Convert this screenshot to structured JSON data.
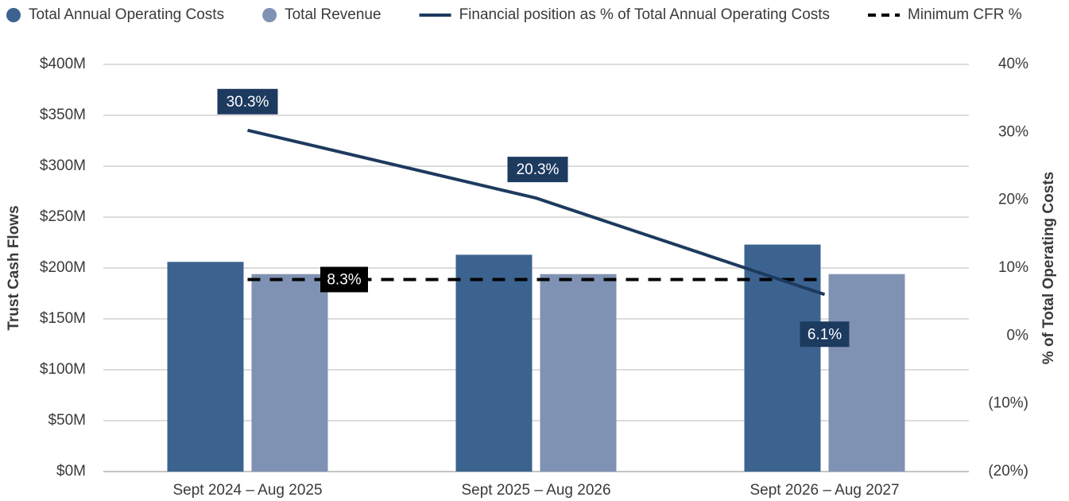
{
  "chart_data": {
    "type": "bar",
    "categories": [
      "Sept 2024 – Aug 2025",
      "Sept 2025 – Aug 2026",
      "Sept 2026 – Aug 2027"
    ],
    "series": [
      {
        "name": "Total Annual Operating Costs",
        "color": "#3c6390",
        "values": [
          206,
          213,
          223
        ]
      },
      {
        "name": "Total Revenue",
        "color": "#8092b3",
        "values": [
          194,
          194,
          194
        ]
      },
      {
        "name": "Financial position as % of Total Annual Operating Costs",
        "type": "line",
        "axis": "y2",
        "color": "#1d3a5f",
        "values": [
          30.3,
          20.3,
          6.1
        ],
        "value_labels": [
          "30.3%",
          "20.3%",
          "6.1%"
        ]
      }
    ],
    "reference_line": {
      "name": "Minimum CFR %",
      "axis": "y2",
      "color": "#000000",
      "value": 8.3,
      "value_label": "8.3%"
    },
    "ylabel": "Trust Cash Flows",
    "y2label": "% of Total Operating Costs",
    "ylim": [
      0,
      400
    ],
    "yticks": [
      {
        "value": 0,
        "label": "$0M"
      },
      {
        "value": 50,
        "label": "$50M"
      },
      {
        "value": 100,
        "label": "$100M"
      },
      {
        "value": 150,
        "label": "$150M"
      },
      {
        "value": 200,
        "label": "$200M"
      },
      {
        "value": 250,
        "label": "$250M"
      },
      {
        "value": 300,
        "label": "$300M"
      },
      {
        "value": 350,
        "label": "$350M"
      },
      {
        "value": 400,
        "label": "$400M"
      }
    ],
    "y2lim": [
      -20,
      40
    ],
    "y2ticks": [
      {
        "value": -20,
        "label": "(20%)"
      },
      {
        "value": -10,
        "label": "(10%)"
      },
      {
        "value": 0,
        "label": "0%"
      },
      {
        "value": 10,
        "label": "10%"
      },
      {
        "value": 20,
        "label": "20%"
      },
      {
        "value": 30,
        "label": "30%"
      },
      {
        "value": 40,
        "label": "40%"
      }
    ],
    "grid": true
  }
}
